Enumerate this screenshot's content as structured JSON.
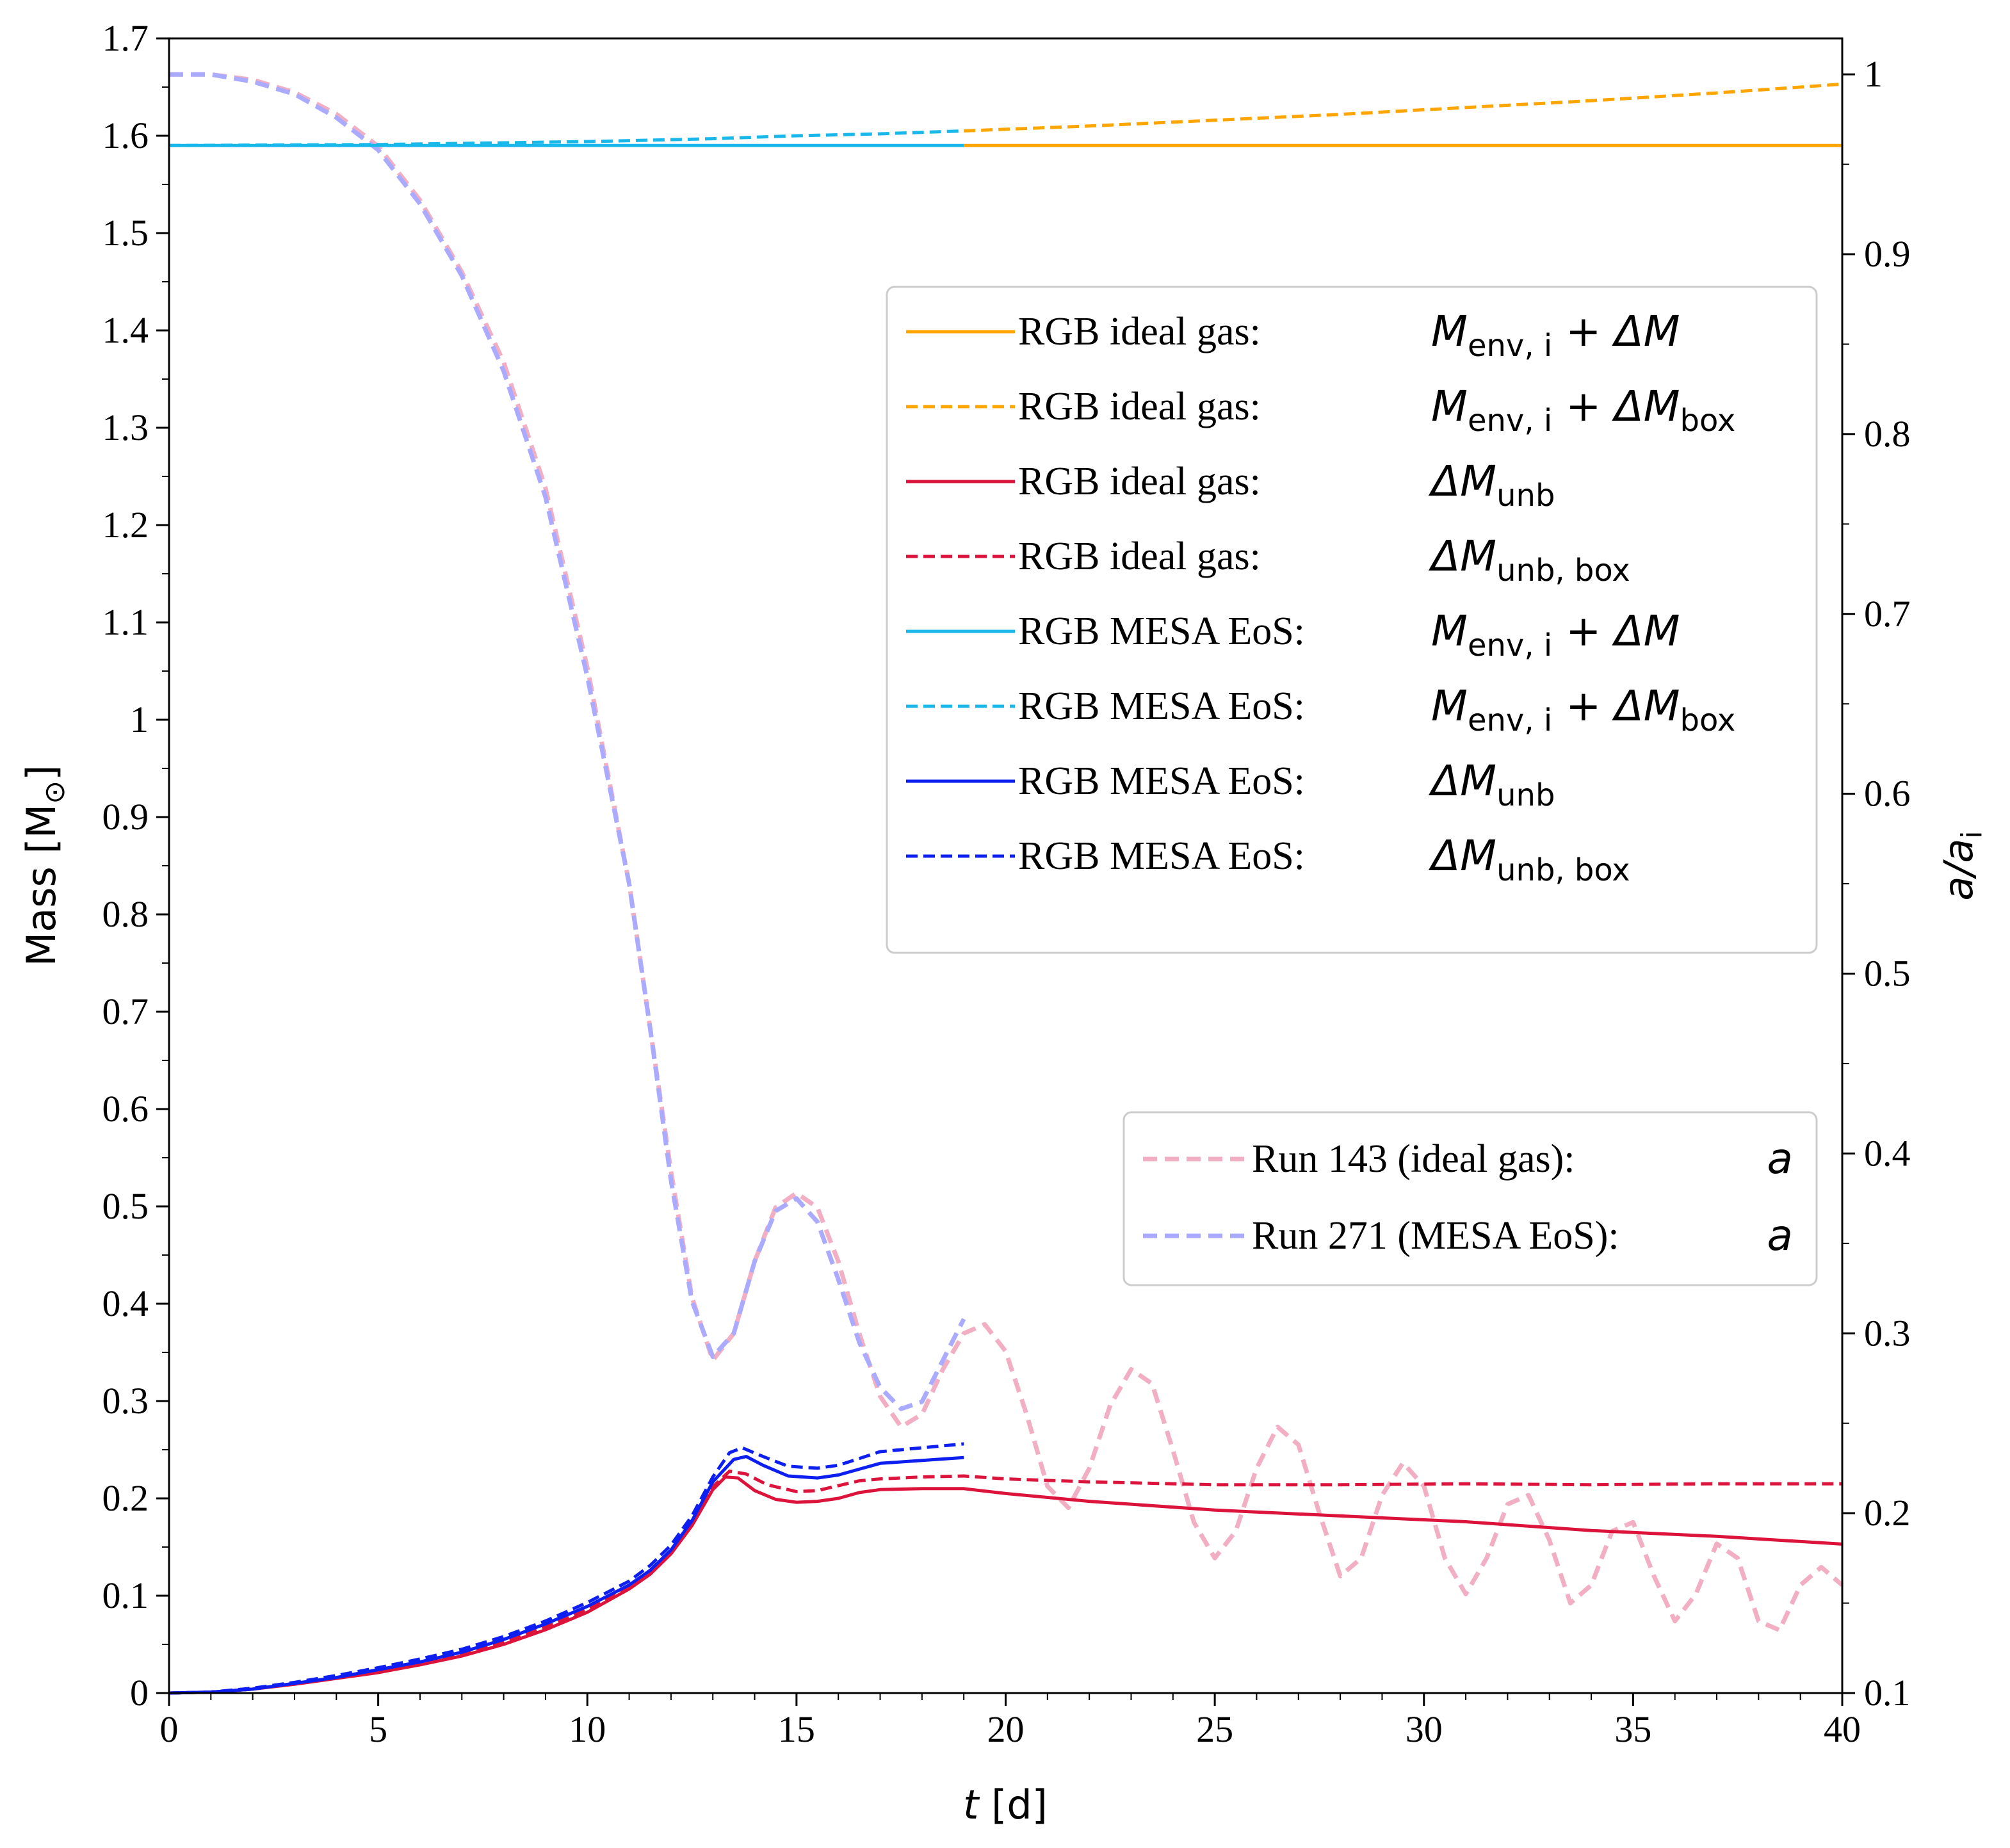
{
  "chart_data": {
    "type": "line",
    "xlabel": {
      "main": "t",
      "unit": " [d]"
    },
    "ylabel_left": {
      "main": "Mass [M",
      "sub": "⊙",
      "end": "]"
    },
    "ylabel_right": {
      "main": "a/a",
      "sub": "i"
    },
    "xlim": [
      0,
      40
    ],
    "ylim_left": [
      0,
      1.7
    ],
    "ylim_right": [
      0.1,
      1.02
    ],
    "x_ticks": [
      "0",
      "5",
      "10",
      "15",
      "20",
      "25",
      "30",
      "35",
      "40"
    ],
    "y_left_ticks": [
      "0",
      "0.1",
      "0.2",
      "0.3",
      "0.4",
      "0.5",
      "0.6",
      "0.7",
      "0.8",
      "0.9",
      "1",
      "1.1",
      "1.2",
      "1.3",
      "1.4",
      "1.5",
      "1.6",
      "1.7"
    ],
    "y_right_ticks": [
      "0.1",
      "0.2",
      "0.3",
      "0.4",
      "0.5",
      "0.6",
      "0.7",
      "0.8",
      "0.9",
      "1"
    ],
    "colors": {
      "orange": "#ffa500",
      "crimson": "#dc143c",
      "cyan": "#1ab8ea",
      "blue": "#0d1ff0",
      "pink": "#f2aec2",
      "lavender": "#aaaaff"
    },
    "series": [
      {
        "id": "ideal-env",
        "axis": "left",
        "color": "orange",
        "dash": false,
        "points": [
          [
            19,
            1.59
          ],
          [
            40,
            1.59
          ]
        ]
      },
      {
        "id": "ideal-env-box",
        "axis": "left",
        "color": "orange",
        "dash": true,
        "points": [
          [
            19,
            1.605
          ],
          [
            22,
            1.61
          ],
          [
            25,
            1.616
          ],
          [
            28,
            1.622
          ],
          [
            31,
            1.629
          ],
          [
            34,
            1.636
          ],
          [
            37,
            1.644
          ],
          [
            40,
            1.653
          ]
        ]
      },
      {
        "id": "ideal-unb",
        "axis": "left",
        "color": "crimson",
        "dash": false,
        "points": [
          [
            0,
            0
          ],
          [
            1,
            0.001
          ],
          [
            2,
            0.004
          ],
          [
            3,
            0.009
          ],
          [
            4,
            0.015
          ],
          [
            5,
            0.021
          ],
          [
            6,
            0.029
          ],
          [
            7,
            0.038
          ],
          [
            8,
            0.05
          ],
          [
            9,
            0.065
          ],
          [
            10,
            0.083
          ],
          [
            11,
            0.107
          ],
          [
            11.5,
            0.122
          ],
          [
            12,
            0.143
          ],
          [
            12.5,
            0.172
          ],
          [
            13,
            0.209
          ],
          [
            13.3,
            0.222
          ],
          [
            13.6,
            0.221
          ],
          [
            14,
            0.208
          ],
          [
            14.5,
            0.199
          ],
          [
            15,
            0.196
          ],
          [
            15.5,
            0.197
          ],
          [
            16,
            0.2
          ],
          [
            16.5,
            0.206
          ],
          [
            17,
            0.209
          ],
          [
            18,
            0.21
          ],
          [
            19,
            0.21
          ],
          [
            20,
            0.205
          ],
          [
            22,
            0.197
          ],
          [
            25,
            0.188
          ],
          [
            28,
            0.182
          ],
          [
            31,
            0.176
          ],
          [
            34,
            0.167
          ],
          [
            37,
            0.161
          ],
          [
            40,
            0.153
          ]
        ]
      },
      {
        "id": "ideal-unb-box",
        "axis": "left",
        "color": "crimson",
        "dash": true,
        "points": [
          [
            0,
            0
          ],
          [
            1,
            0.001
          ],
          [
            2,
            0.004
          ],
          [
            3,
            0.01
          ],
          [
            4,
            0.016
          ],
          [
            5,
            0.022
          ],
          [
            6,
            0.03
          ],
          [
            7,
            0.04
          ],
          [
            8,
            0.052
          ],
          [
            9,
            0.068
          ],
          [
            10,
            0.086
          ],
          [
            11,
            0.11
          ],
          [
            11.5,
            0.126
          ],
          [
            12,
            0.147
          ],
          [
            12.5,
            0.176
          ],
          [
            13,
            0.212
          ],
          [
            13.4,
            0.228
          ],
          [
            13.8,
            0.225
          ],
          [
            14.3,
            0.214
          ],
          [
            15,
            0.207
          ],
          [
            15.5,
            0.208
          ],
          [
            16,
            0.213
          ],
          [
            16.5,
            0.218
          ],
          [
            17,
            0.22
          ],
          [
            18,
            0.222
          ],
          [
            19,
            0.223
          ],
          [
            20,
            0.22
          ],
          [
            22,
            0.217
          ],
          [
            25,
            0.214
          ],
          [
            28,
            0.214
          ],
          [
            31,
            0.215
          ],
          [
            34,
            0.214
          ],
          [
            37,
            0.215
          ],
          [
            40,
            0.215
          ]
        ]
      },
      {
        "id": "mesa-env",
        "axis": "left",
        "color": "cyan",
        "dash": false,
        "points": [
          [
            0,
            1.59
          ],
          [
            19,
            1.59
          ]
        ]
      },
      {
        "id": "mesa-env-box",
        "axis": "left",
        "color": "cyan",
        "dash": true,
        "points": [
          [
            0,
            1.59
          ],
          [
            5,
            1.591
          ],
          [
            10,
            1.594
          ],
          [
            13,
            1.597
          ],
          [
            15,
            1.6
          ],
          [
            17,
            1.602
          ],
          [
            19,
            1.605
          ]
        ]
      },
      {
        "id": "mesa-unb",
        "axis": "left",
        "color": "blue",
        "dash": false,
        "points": [
          [
            0,
            0
          ],
          [
            1,
            0.001
          ],
          [
            2,
            0.004
          ],
          [
            3,
            0.01
          ],
          [
            4,
            0.016
          ],
          [
            5,
            0.024
          ],
          [
            6,
            0.032
          ],
          [
            7,
            0.042
          ],
          [
            8,
            0.055
          ],
          [
            9,
            0.071
          ],
          [
            10,
            0.089
          ],
          [
            11,
            0.111
          ],
          [
            11.5,
            0.126
          ],
          [
            12,
            0.147
          ],
          [
            12.5,
            0.177
          ],
          [
            13,
            0.217
          ],
          [
            13.5,
            0.24
          ],
          [
            13.8,
            0.243
          ],
          [
            14.2,
            0.234
          ],
          [
            14.8,
            0.223
          ],
          [
            15.5,
            0.221
          ],
          [
            16,
            0.224
          ],
          [
            16.5,
            0.23
          ],
          [
            17,
            0.236
          ],
          [
            18,
            0.239
          ],
          [
            19,
            0.242
          ]
        ]
      },
      {
        "id": "mesa-unb-box",
        "axis": "left",
        "color": "blue",
        "dash": true,
        "points": [
          [
            0,
            0
          ],
          [
            1,
            0.001
          ],
          [
            2,
            0.005
          ],
          [
            3,
            0.011
          ],
          [
            4,
            0.018
          ],
          [
            5,
            0.026
          ],
          [
            6,
            0.035
          ],
          [
            7,
            0.045
          ],
          [
            8,
            0.058
          ],
          [
            9,
            0.074
          ],
          [
            10,
            0.093
          ],
          [
            11,
            0.115
          ],
          [
            11.5,
            0.131
          ],
          [
            12,
            0.152
          ],
          [
            12.5,
            0.182
          ],
          [
            13,
            0.222
          ],
          [
            13.4,
            0.247
          ],
          [
            13.7,
            0.252
          ],
          [
            14.2,
            0.243
          ],
          [
            14.8,
            0.233
          ],
          [
            15.5,
            0.231
          ],
          [
            16,
            0.234
          ],
          [
            16.5,
            0.241
          ],
          [
            17,
            0.248
          ],
          [
            18,
            0.252
          ],
          [
            19,
            0.256
          ]
        ]
      },
      {
        "id": "run143-a",
        "axis": "right",
        "color": "pink",
        "dash": true,
        "points": [
          [
            0,
            1.0
          ],
          [
            1,
            1.0
          ],
          [
            2,
            0.997
          ],
          [
            3,
            0.99
          ],
          [
            4,
            0.978
          ],
          [
            5,
            0.96
          ],
          [
            6,
            0.93
          ],
          [
            7,
            0.89
          ],
          [
            8,
            0.84
          ],
          [
            9,
            0.77
          ],
          [
            10,
            0.67
          ],
          [
            11,
            0.55
          ],
          [
            11.5,
            0.47
          ],
          [
            12,
            0.39
          ],
          [
            12.5,
            0.32
          ],
          [
            13,
            0.285
          ],
          [
            13.5,
            0.3
          ],
          [
            14,
            0.34
          ],
          [
            14.5,
            0.37
          ],
          [
            15,
            0.378
          ],
          [
            15.5,
            0.37
          ],
          [
            16,
            0.34
          ],
          [
            16.5,
            0.3
          ],
          [
            17,
            0.265
          ],
          [
            17.5,
            0.248
          ],
          [
            18,
            0.255
          ],
          [
            18.5,
            0.28
          ],
          [
            19,
            0.3
          ],
          [
            19.5,
            0.305
          ],
          [
            20,
            0.29
          ],
          [
            20.5,
            0.255
          ],
          [
            21,
            0.215
          ],
          [
            21.5,
            0.203
          ],
          [
            22,
            0.225
          ],
          [
            22.5,
            0.26
          ],
          [
            23,
            0.28
          ],
          [
            23.5,
            0.272
          ],
          [
            24,
            0.235
          ],
          [
            24.5,
            0.195
          ],
          [
            25,
            0.175
          ],
          [
            25.5,
            0.19
          ],
          [
            26,
            0.225
          ],
          [
            26.5,
            0.248
          ],
          [
            27,
            0.238
          ],
          [
            27.5,
            0.2
          ],
          [
            28,
            0.165
          ],
          [
            28.5,
            0.175
          ],
          [
            29,
            0.21
          ],
          [
            29.5,
            0.228
          ],
          [
            30,
            0.215
          ],
          [
            30.5,
            0.175
          ],
          [
            31,
            0.155
          ],
          [
            31.5,
            0.175
          ],
          [
            32,
            0.205
          ],
          [
            32.5,
            0.21
          ],
          [
            33,
            0.185
          ],
          [
            33.5,
            0.15
          ],
          [
            34,
            0.16
          ],
          [
            34.5,
            0.19
          ],
          [
            35,
            0.195
          ],
          [
            35.5,
            0.165
          ],
          [
            36,
            0.14
          ],
          [
            36.5,
            0.155
          ],
          [
            37,
            0.183
          ],
          [
            37.5,
            0.175
          ],
          [
            38,
            0.14
          ],
          [
            38.5,
            0.135
          ],
          [
            39,
            0.16
          ],
          [
            39.5,
            0.17
          ],
          [
            40,
            0.16
          ]
        ]
      },
      {
        "id": "run271-a",
        "axis": "right",
        "color": "lavender",
        "dash": true,
        "points": [
          [
            0,
            1.0
          ],
          [
            1,
            1.0
          ],
          [
            2,
            0.996
          ],
          [
            3,
            0.989
          ],
          [
            4,
            0.976
          ],
          [
            5,
            0.958
          ],
          [
            6,
            0.928
          ],
          [
            7,
            0.888
          ],
          [
            8,
            0.835
          ],
          [
            9,
            0.765
          ],
          [
            10,
            0.665
          ],
          [
            11,
            0.55
          ],
          [
            11.5,
            0.47
          ],
          [
            12,
            0.385
          ],
          [
            12.5,
            0.318
          ],
          [
            13,
            0.287
          ],
          [
            13.5,
            0.3
          ],
          [
            14,
            0.34
          ],
          [
            14.5,
            0.368
          ],
          [
            15,
            0.375
          ],
          [
            15.5,
            0.362
          ],
          [
            16,
            0.33
          ],
          [
            16.5,
            0.295
          ],
          [
            17,
            0.27
          ],
          [
            17.5,
            0.258
          ],
          [
            18,
            0.262
          ],
          [
            18.5,
            0.285
          ],
          [
            19,
            0.308
          ]
        ]
      }
    ],
    "legend_main": [
      {
        "series": "ideal-env",
        "label": "RGB ideal gas:",
        "sym": "M",
        "sub": "env, i",
        "plus": " + ΔM",
        "sub2": ""
      },
      {
        "series": "ideal-env-box",
        "label": "RGB ideal gas:",
        "sym": "M",
        "sub": "env, i",
        "plus": " + ΔM",
        "sub2": "box"
      },
      {
        "series": "ideal-unb",
        "label": "RGB ideal gas:",
        "sym": "ΔM",
        "sub": "unb",
        "plus": "",
        "sub2": ""
      },
      {
        "series": "ideal-unb-box",
        "label": "RGB ideal gas:",
        "sym": "ΔM",
        "sub": "unb, box",
        "plus": "",
        "sub2": ""
      },
      {
        "series": "mesa-env",
        "label": "RGB MESA EoS:",
        "sym": "M",
        "sub": "env, i",
        "plus": " + ΔM",
        "sub2": ""
      },
      {
        "series": "mesa-env-box",
        "label": "RGB MESA EoS:",
        "sym": "M",
        "sub": "env, i",
        "plus": " + ΔM",
        "sub2": "box"
      },
      {
        "series": "mesa-unb",
        "label": "RGB MESA EoS:",
        "sym": "ΔM",
        "sub": "unb",
        "plus": "",
        "sub2": ""
      },
      {
        "series": "mesa-unb-box",
        "label": "RGB MESA EoS:",
        "sym": "ΔM",
        "sub": "unb, box",
        "plus": "",
        "sub2": ""
      }
    ],
    "legend_sep": [
      {
        "series": "run143-a",
        "label": "Run 143 (ideal gas):",
        "sym": "a"
      },
      {
        "series": "run271-a",
        "label": "Run 271 (MESA EoS):",
        "sym": "a"
      }
    ],
    "legend_main_position": "upper-right",
    "legend_sep_position": "center-right",
    "grid": false
  }
}
